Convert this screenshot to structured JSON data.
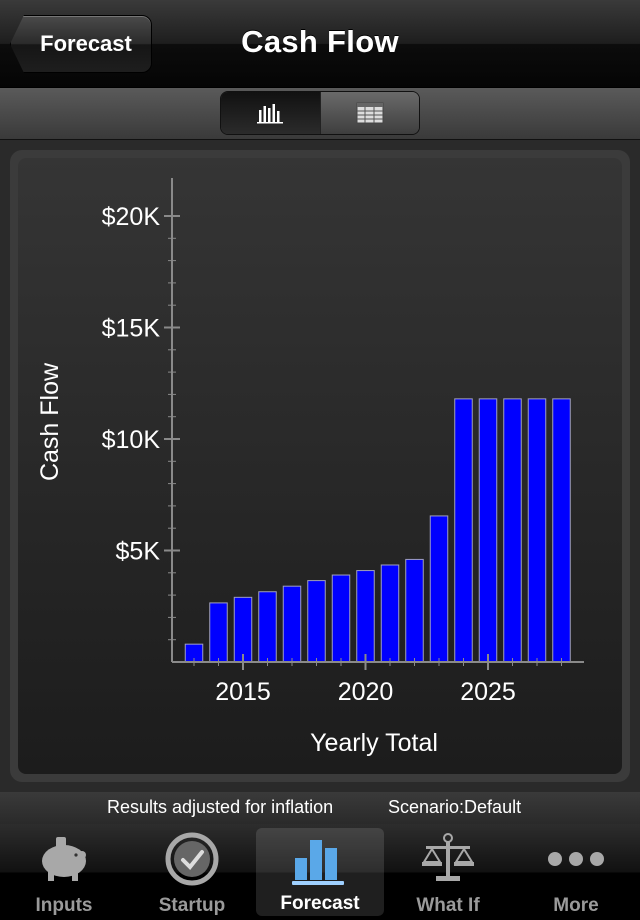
{
  "navbar": {
    "back_label": "Forecast",
    "title": "Cash Flow"
  },
  "toolbar": {
    "segments": [
      {
        "icon": "bar-chart-icon",
        "selected": true
      },
      {
        "icon": "table-icon",
        "selected": false
      }
    ]
  },
  "chart_data": {
    "type": "bar",
    "xlabel": "Yearly Total",
    "ylabel": "Cash Flow",
    "ylim": [
      0,
      20000
    ],
    "yticks": [
      {
        "value": 5000,
        "label": "$5K"
      },
      {
        "value": 10000,
        "label": "$10K"
      },
      {
        "value": 15000,
        "label": "$15K"
      },
      {
        "value": 20000,
        "label": "$20K"
      }
    ],
    "xticks": [
      {
        "value": 2015,
        "label": "2015"
      },
      {
        "value": 2020,
        "label": "2020"
      },
      {
        "value": 2025,
        "label": "2025"
      }
    ],
    "x": [
      2013,
      2014,
      2015,
      2016,
      2017,
      2018,
      2019,
      2020,
      2021,
      2022,
      2023,
      2024,
      2025,
      2026,
      2027,
      2028
    ],
    "values": [
      800,
      2650,
      2900,
      3150,
      3400,
      3650,
      3900,
      4100,
      4350,
      4600,
      6550,
      11800,
      11800,
      11800,
      11800,
      11800
    ],
    "bar_color": "#0000ff",
    "bar_outline": "#a0a0c0",
    "grid": false
  },
  "status": {
    "inflation_note": "Results adjusted for inflation",
    "scenario": "Scenario:Default"
  },
  "tabs": [
    {
      "label": "Inputs",
      "icon": "piggy-bank-icon",
      "selected": false
    },
    {
      "label": "Startup",
      "icon": "clock-icon",
      "selected": false
    },
    {
      "label": "Forecast",
      "icon": "forecast-chart-icon",
      "selected": true
    },
    {
      "label": "What If",
      "icon": "scales-icon",
      "selected": false
    },
    {
      "label": "More",
      "icon": "more-dots-icon",
      "selected": false
    }
  ]
}
